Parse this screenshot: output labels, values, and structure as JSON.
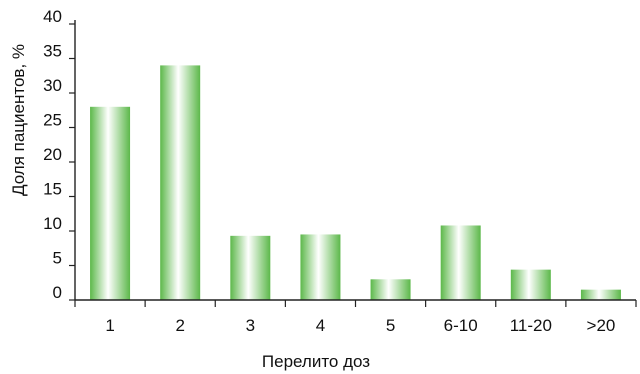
{
  "chart_data": {
    "type": "bar",
    "categories": [
      "1",
      "2",
      "3",
      "4",
      "5",
      "6-10",
      "11-20",
      ">20"
    ],
    "values": [
      28,
      34,
      9.3,
      9.5,
      3,
      10.8,
      4.4,
      1.5
    ],
    "xlabel": "Перелито доз",
    "ylabel": "Доля пациентов, %",
    "ylim": [
      0,
      40
    ],
    "yticks": [
      "0",
      "5",
      "10",
      "15",
      "20",
      "25",
      "30",
      "35",
      "40"
    ],
    "grid": false,
    "bar_color": "#5cb84a",
    "bar_highlight": "#ffffff"
  }
}
